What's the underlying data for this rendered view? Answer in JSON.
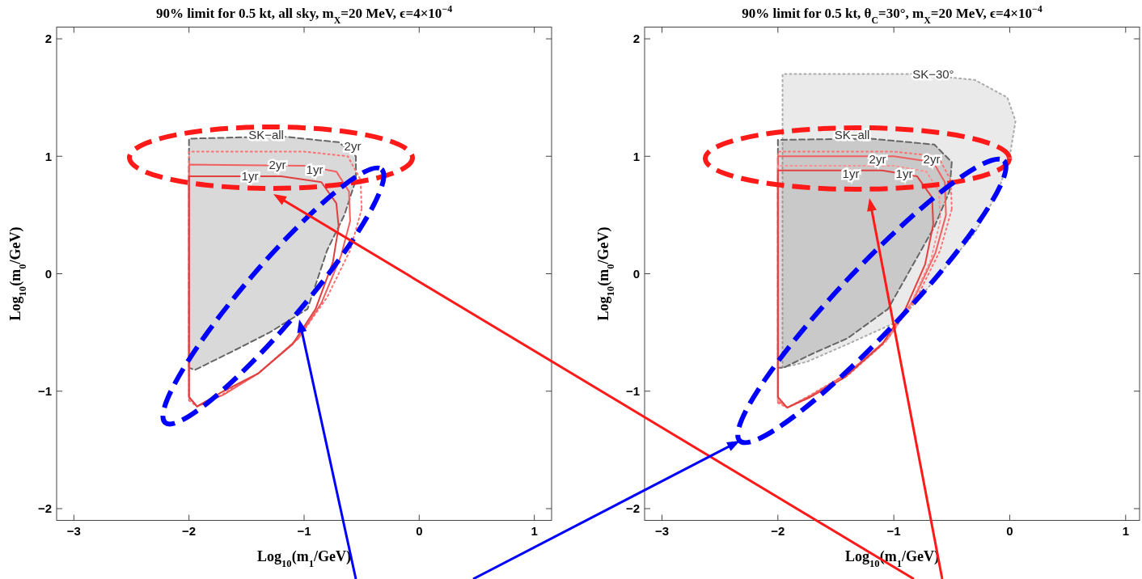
{
  "chart_data": [
    {
      "type": "line",
      "title": "90% limit for 0.5 kt, all sky, m$_{X}$=20 MeV, ϵ=4×10$^{−4}$",
      "xlabel": "Log$_{10}$(m$_{1}$/GeV)",
      "ylabel": "Log$_{10}$(m$_{0}$/GeV)",
      "xlim": [
        -3.15,
        1.15
      ],
      "ylim": [
        -2.1,
        2.1
      ],
      "xticks": [
        -3,
        -2,
        -1,
        0,
        1
      ],
      "yticks": [
        -2,
        -1,
        0,
        1,
        2
      ],
      "series": [
        {
          "type": "area",
          "color": "#666666",
          "line_style": "dashed",
          "x": [
            -2,
            -2,
            -1.2,
            -0.7,
            -0.55,
            -0.55,
            -0.65,
            -0.8,
            -0.97,
            -1.3,
            -1.6,
            -1.95,
            -2
          ],
          "values": [
            -0.8,
            1.15,
            1.17,
            1.12,
            1.0,
            0.8,
            0.5,
            0.2,
            -0.3,
            -0.5,
            -0.65,
            -0.82,
            -0.8
          ]
        },
        {
          "type": "line",
          "color": "#ff7070",
          "line_style": "dotted",
          "x": [
            -2,
            -2,
            -1.0,
            -0.62,
            -0.51,
            -0.5,
            null,
            -2,
            -1.93,
            -1.75,
            -1.4,
            -1.05,
            -0.8,
            -0.6,
            -0.5
          ],
          "values": [
            -1.08,
            1.04,
            1.04,
            1.0,
            0.8,
            0.55,
            null,
            -1.08,
            -1.13,
            -1.05,
            -0.85,
            -0.55,
            -0.2,
            0.2,
            0.55
          ]
        },
        {
          "type": "line",
          "color": "#f06060",
          "line_style": "solid",
          "x": [
            -2,
            -2,
            -1.0,
            -0.72,
            -0.61,
            -0.6,
            null,
            -2,
            -1.93,
            -1.7,
            -1.4,
            -1.05,
            -0.85,
            -0.68,
            -0.6
          ],
          "values": [
            -1.05,
            0.93,
            0.92,
            0.87,
            0.7,
            0.45,
            null,
            -1.05,
            -1.13,
            -1.03,
            -0.85,
            -0.55,
            -0.25,
            0.15,
            0.45
          ]
        },
        {
          "type": "line",
          "color": "#e04040",
          "line_style": "solid",
          "x": [
            -2,
            -2,
            -1.2,
            -0.85,
            -0.72,
            -0.7,
            null,
            -2,
            -1.93,
            -1.7,
            -1.4,
            -1.1,
            -0.9,
            -0.75,
            -0.7
          ],
          "values": [
            -1.05,
            0.83,
            0.83,
            0.78,
            0.6,
            0.4,
            null,
            -1.05,
            -1.13,
            -1.0,
            -0.85,
            -0.6,
            -0.3,
            0.1,
            0.4
          ]
        }
      ],
      "annotations": [
        {
          "text": "SK−all",
          "x": -1.33,
          "y": 1.18
        },
        "2yr",
        "2yr",
        "1yr",
        "1yr"
      ]
    },
    {
      "type": "line",
      "title": "90% limit for 0.5 kt, θ$_{C}$=30°, m$_{X}$=20 MeV, ϵ=4×10$^{−4}$",
      "xlabel": "Log$_{10}$(m$_{1}$/GeV)",
      "ylabel": "Log$_{10}$(m$_{0}$/GeV)",
      "xlim": [
        -3.15,
        1.12
      ],
      "ylim": [
        -2.1,
        2.1
      ],
      "xticks": [
        -3,
        -2,
        -1,
        0,
        1
      ],
      "yticks": [
        -2,
        -1,
        0,
        1,
        2
      ],
      "series": [
        {
          "type": "area",
          "color": "#aaaaaa",
          "line_style": "dotted",
          "x": [
            -1.96,
            -1.96,
            -0.8,
            -0.3,
            -0.02,
            0.05,
            0.0,
            -0.1,
            -0.3,
            -0.6,
            -0.95,
            -1.4,
            -1.75,
            -1.96
          ],
          "values": [
            -0.8,
            1.7,
            1.7,
            1.65,
            1.5,
            1.3,
            1.0,
            0.7,
            0.35,
            0.0,
            -0.4,
            -0.6,
            -0.75,
            -0.8
          ]
        },
        {
          "type": "area",
          "color": "#666666",
          "line_style": "dashed",
          "x": [
            -2,
            -2,
            -1.2,
            -0.65,
            -0.5,
            -0.52,
            -0.65,
            -0.85,
            -1.05,
            -1.4,
            -1.7,
            -1.95,
            -2
          ],
          "values": [
            -0.8,
            1.14,
            1.15,
            1.1,
            0.95,
            0.7,
            0.4,
            0.05,
            -0.3,
            -0.55,
            -0.68,
            -0.8,
            -0.8
          ]
        },
        {
          "type": "line",
          "color": "#ff7070",
          "line_style": "dotted",
          "x": [
            -2,
            -2,
            -1.0,
            -0.62,
            -0.51,
            -0.5,
            null,
            -2,
            -1.92,
            -1.75,
            -1.4,
            -1.05,
            -0.8,
            -0.6,
            -0.5
          ],
          "values": [
            -1.1,
            1.04,
            1.04,
            1.0,
            0.8,
            0.55,
            null,
            -1.1,
            -1.14,
            -1.05,
            -0.85,
            -0.55,
            -0.2,
            0.2,
            0.55
          ]
        },
        {
          "type": "line",
          "color": "#f06060",
          "line_style": "solid",
          "x": [
            -2,
            -2,
            -1.0,
            -0.66,
            -0.56,
            -0.55,
            null,
            -2,
            -1.92,
            -1.72,
            -1.4,
            -1.05,
            -0.83,
            -0.64,
            -0.55
          ],
          "values": [
            -1.08,
            1.0,
            1.0,
            0.95,
            0.78,
            0.5,
            null,
            -1.08,
            -1.14,
            -1.04,
            -0.85,
            -0.55,
            -0.22,
            0.18,
            0.5
          ]
        },
        {
          "type": "line",
          "color": "#ff9090",
          "line_style": "dotted",
          "x": [
            -2,
            -2,
            -1.0,
            -0.72,
            -0.61,
            -0.6,
            null,
            -2,
            -1.92,
            -1.72,
            -1.4,
            -1.07,
            -0.86,
            -0.68,
            -0.6
          ],
          "values": [
            -1.08,
            0.92,
            0.92,
            0.87,
            0.7,
            0.45,
            null,
            -1.08,
            -1.14,
            -1.05,
            -0.87,
            -0.58,
            -0.27,
            0.12,
            0.45
          ]
        },
        {
          "type": "line",
          "color": "#e04040",
          "line_style": "solid",
          "x": [
            -2,
            -2,
            -1.1,
            -0.8,
            -0.67,
            -0.66,
            null,
            -2,
            -1.92,
            -1.72,
            -1.42,
            -1.1,
            -0.9,
            -0.73,
            -0.66
          ],
          "values": [
            -1.05,
            0.88,
            0.88,
            0.83,
            0.65,
            0.42,
            null,
            -1.05,
            -1.14,
            -1.05,
            -0.88,
            -0.6,
            -0.3,
            0.08,
            0.42
          ]
        }
      ],
      "annotations": [
        {
          "text": "SK−30°",
          "x": -0.66,
          "y": 1.7
        },
        {
          "text": "SK−all",
          "x": -1.36,
          "y": 1.18
        },
        "2yr",
        "2yr",
        "1yr",
        "1yr"
      ]
    }
  ]
}
